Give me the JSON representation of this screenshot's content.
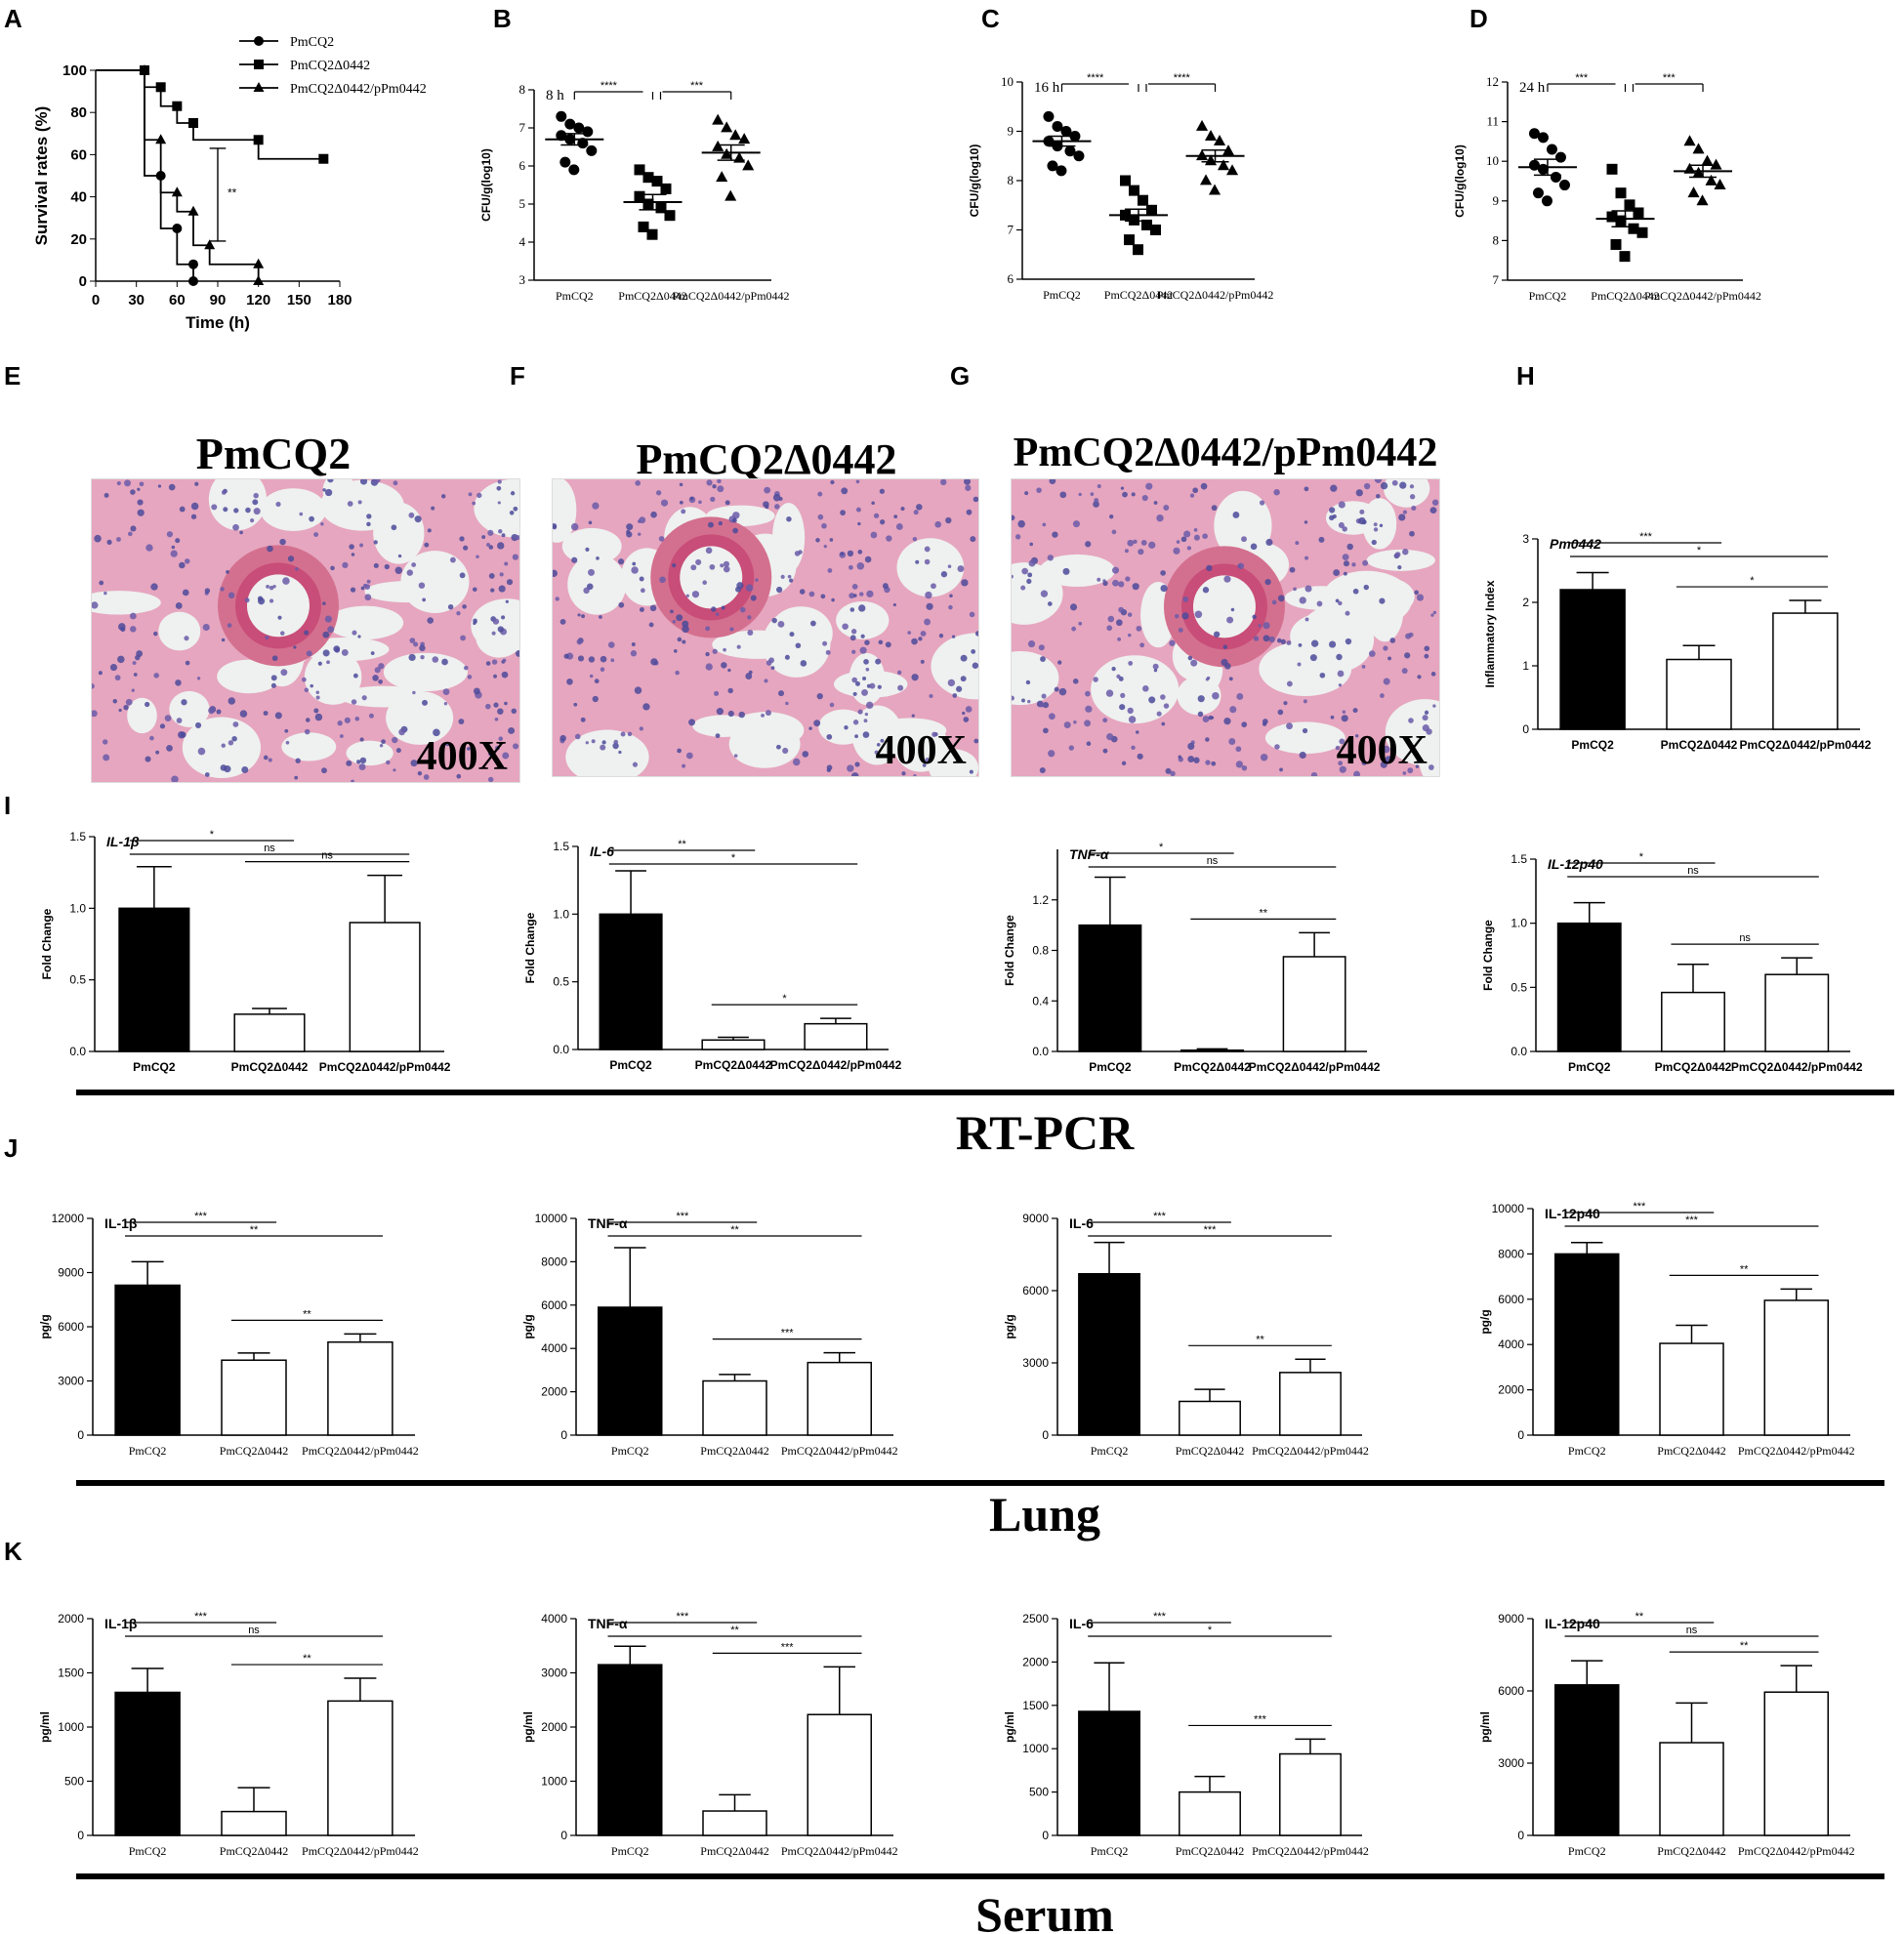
{
  "panel_letters": [
    "A",
    "B",
    "C",
    "D",
    "E",
    "F",
    "G",
    "H",
    "I",
    "J",
    "K"
  ],
  "section_titles": [
    "RT-PCR",
    "Lung",
    "Serum"
  ],
  "histology": [
    {
      "title": "PmCQ2",
      "mag": "400X"
    },
    {
      "title": "PmCQ2Δ0442",
      "mag": "400X"
    },
    {
      "title": "PmCQ2Δ0442/pPm0442",
      "mag": "400X"
    }
  ],
  "chart_data": [
    {
      "panel": "A",
      "type": "line",
      "xlabel": "Time (h)",
      "ylabel": "Survival rates (%)",
      "xlim": [
        0,
        180
      ],
      "ylim": [
        0,
        100
      ],
      "xticks": [
        0,
        30,
        60,
        90,
        120,
        150,
        180
      ],
      "yticks": [
        0,
        20,
        40,
        60,
        80,
        100
      ],
      "legend_position": "top-right",
      "series": [
        {
          "name": "PmCQ2",
          "marker": "circle",
          "x": [
            0,
            36,
            36,
            48,
            48,
            60,
            60,
            72,
            72
          ],
          "y": [
            100,
            100,
            50,
            50,
            25,
            25,
            8,
            8,
            0
          ]
        },
        {
          "name": "PmCQ2Δ0442",
          "marker": "square",
          "x": [
            0,
            36,
            36,
            48,
            48,
            60,
            60,
            72,
            72,
            120,
            120,
            168
          ],
          "y": [
            100,
            100,
            92,
            92,
            83,
            83,
            75,
            75,
            67,
            67,
            58,
            58
          ]
        },
        {
          "name": "PmCQ2Δ0442/pPm0442",
          "marker": "triangle",
          "x": [
            0,
            36,
            36,
            48,
            48,
            60,
            60,
            72,
            72,
            84,
            84,
            120,
            120
          ],
          "y": [
            100,
            100,
            67,
            67,
            42,
            42,
            33,
            33,
            17,
            17,
            8,
            8,
            0
          ]
        }
      ],
      "annotation": "**"
    },
    {
      "panel": "B",
      "type": "scatter",
      "inner_label": "8 h",
      "ylabel": "CFU/g(log10)",
      "ylim": [
        3,
        8
      ],
      "yticks": [
        3,
        4,
        5,
        6,
        7,
        8
      ],
      "categories": [
        "PmCQ2",
        "PmCQ2Δ0442",
        "PmCQ2Δ0442/pPm0442"
      ],
      "markers": [
        "circle",
        "square",
        "triangle"
      ],
      "points": [
        [
          7.3,
          7.1,
          7.0,
          6.9,
          6.8,
          6.7,
          6.6,
          6.4,
          6.1,
          5.9
        ],
        [
          5.9,
          5.7,
          5.6,
          5.4,
          5.2,
          5.0,
          4.9,
          4.7,
          4.4,
          4.2
        ],
        [
          7.2,
          7.0,
          6.8,
          6.7,
          6.5,
          6.3,
          6.2,
          6.0,
          5.7,
          5.2
        ]
      ],
      "means": [
        6.7,
        5.05,
        6.35
      ],
      "sem": [
        0.15,
        0.2,
        0.2
      ],
      "sig": [
        {
          "from": 0,
          "to": 1,
          "label": "****"
        },
        {
          "from": 1,
          "to": 2,
          "label": "***"
        }
      ]
    },
    {
      "panel": "C",
      "type": "scatter",
      "inner_label": "16 h",
      "ylabel": "CFU/g(log10)",
      "ylim": [
        6,
        10
      ],
      "yticks": [
        6,
        7,
        8,
        9,
        10
      ],
      "categories": [
        "PmCQ2",
        "PmCQ2Δ0442",
        "PmCQ2Δ0442/pPm0442"
      ],
      "markers": [
        "circle",
        "square",
        "triangle"
      ],
      "points": [
        [
          9.3,
          9.1,
          9.0,
          8.9,
          8.8,
          8.7,
          8.6,
          8.5,
          8.3,
          8.2
        ],
        [
          8.0,
          7.8,
          7.6,
          7.4,
          7.3,
          7.2,
          7.1,
          7.0,
          6.8,
          6.6
        ],
        [
          9.1,
          8.9,
          8.8,
          8.6,
          8.5,
          8.4,
          8.3,
          8.2,
          8.0,
          7.8
        ]
      ],
      "means": [
        8.8,
        7.3,
        8.5
      ],
      "sem": [
        0.1,
        0.12,
        0.12
      ],
      "sig": [
        {
          "from": 0,
          "to": 1,
          "label": "****"
        },
        {
          "from": 1,
          "to": 2,
          "label": "****"
        }
      ]
    },
    {
      "panel": "D",
      "type": "scatter",
      "inner_label": "24 h",
      "ylabel": "CFU/g(log10)",
      "ylim": [
        7,
        12
      ],
      "yticks": [
        7,
        8,
        9,
        10,
        11,
        12
      ],
      "categories": [
        "PmCQ2",
        "PmCQ2Δ0442",
        "PmCQ2Δ0442/pPm0442"
      ],
      "markers": [
        "circle",
        "square",
        "triangle"
      ],
      "points": [
        [
          10.7,
          10.6,
          10.3,
          10.1,
          9.9,
          9.8,
          9.6,
          9.4,
          9.2,
          9.0
        ],
        [
          9.8,
          9.2,
          8.9,
          8.7,
          8.6,
          8.5,
          8.3,
          8.2,
          7.9,
          7.6
        ],
        [
          10.5,
          10.3,
          10.0,
          9.9,
          9.8,
          9.7,
          9.5,
          9.4,
          9.2,
          9.0
        ]
      ],
      "means": [
        9.85,
        8.55,
        9.75
      ],
      "sem": [
        0.2,
        0.2,
        0.15
      ],
      "sig": [
        {
          "from": 0,
          "to": 1,
          "label": "***"
        },
        {
          "from": 1,
          "to": 2,
          "label": "***"
        }
      ]
    },
    {
      "panel": "H",
      "type": "bar",
      "inner_label": "Pm0442",
      "ylabel": "Inflammatory Index",
      "ylim": [
        0,
        3
      ],
      "yticks": [
        0,
        1,
        2,
        3
      ],
      "categories": [
        "PmCQ2",
        "PmCQ2Δ0442",
        "PmCQ2Δ0442/pPm0442"
      ],
      "values": [
        2.2,
        1.1,
        1.83
      ],
      "err": [
        0.27,
        0.22,
        0.2
      ],
      "sig": [
        {
          "from": 0,
          "to": 1,
          "label": "***"
        },
        {
          "from": 0,
          "to": 2,
          "label": "*"
        },
        {
          "from": 1,
          "to": 2,
          "label": "*"
        }
      ]
    },
    {
      "panel": "I1",
      "type": "bar",
      "inner_label": "IL-1β",
      "ylabel": "Fold Change",
      "ylim": [
        0,
        1.5
      ],
      "yticks": [
        0.0,
        0.5,
        1.0,
        1.5
      ],
      "categories": [
        "PmCQ2",
        "PmCQ2Δ0442",
        "PmCQ2Δ0442/pPm0442"
      ],
      "values": [
        1.0,
        0.26,
        0.9
      ],
      "err": [
        0.29,
        0.04,
        0.33
      ],
      "sig": [
        {
          "from": 0,
          "to": 1,
          "label": "*"
        },
        {
          "from": 0,
          "to": 2,
          "label": "ns"
        },
        {
          "from": 1,
          "to": 2,
          "label": "ns"
        }
      ]
    },
    {
      "panel": "I2",
      "type": "bar",
      "inner_label": "IL-6",
      "ylabel": "Fold Change",
      "ylim": [
        0,
        1.5
      ],
      "yticks": [
        0.0,
        0.5,
        1.0,
        1.5
      ],
      "categories": [
        "PmCQ2",
        "PmCQ2Δ0442",
        "PmCQ2Δ0442/pPm0442"
      ],
      "values": [
        1.0,
        0.07,
        0.19
      ],
      "err": [
        0.32,
        0.02,
        0.04
      ],
      "sig": [
        {
          "from": 0,
          "to": 1,
          "label": "**"
        },
        {
          "from": 0,
          "to": 2,
          "label": "*"
        },
        {
          "from": 1,
          "to": 2,
          "label": "*"
        }
      ]
    },
    {
      "panel": "I3",
      "type": "bar",
      "inner_label": "TNF-α",
      "ylabel": "Fold Change",
      "ylim": [
        0,
        1.6
      ],
      "yticks": [
        0.0,
        0.4,
        0.8,
        1.2
      ],
      "categories": [
        "PmCQ2",
        "PmCQ2Δ0442",
        "PmCQ2Δ0442/pPm0442"
      ],
      "values": [
        1.0,
        0.01,
        0.75
      ],
      "err": [
        0.38,
        0.01,
        0.19
      ],
      "sig": [
        {
          "from": 0,
          "to": 1,
          "label": "*"
        },
        {
          "from": 0,
          "to": 2,
          "label": "ns"
        },
        {
          "from": 1,
          "to": 2,
          "label": "**"
        }
      ]
    },
    {
      "panel": "I4",
      "type": "bar",
      "inner_label": "IL-12p40",
      "ylabel": "Fold Change",
      "ylim": [
        0,
        1.5
      ],
      "yticks": [
        0.0,
        0.5,
        1.0,
        1.5
      ],
      "categories": [
        "PmCQ2",
        "PmCQ2Δ0442",
        "PmCQ2Δ0442/pPm0442"
      ],
      "values": [
        1.0,
        0.46,
        0.6
      ],
      "err": [
        0.16,
        0.22,
        0.13
      ],
      "sig": [
        {
          "from": 0,
          "to": 1,
          "label": "*"
        },
        {
          "from": 0,
          "to": 2,
          "label": "ns"
        },
        {
          "from": 1,
          "to": 2,
          "label": "ns"
        }
      ]
    },
    {
      "panel": "J1",
      "type": "bar",
      "inner_label": "IL-1β",
      "ylabel": "pg/g",
      "ylim": [
        0,
        12000
      ],
      "yticks": [
        0,
        3000,
        6000,
        9000,
        12000
      ],
      "categories": [
        "PmCQ2",
        "PmCQ2Δ0442",
        "PmCQ2Δ0442/pPm0442"
      ],
      "values": [
        8300,
        4150,
        5150
      ],
      "err": [
        1300,
        400,
        450
      ],
      "sig": [
        {
          "from": 0,
          "to": 1,
          "label": "***"
        },
        {
          "from": 0,
          "to": 2,
          "label": "**"
        },
        {
          "from": 1,
          "to": 2,
          "label": "**"
        }
      ]
    },
    {
      "panel": "J2",
      "type": "bar",
      "inner_label": "TNF-α",
      "ylabel": "pg/g",
      "ylim": [
        0,
        10000
      ],
      "yticks": [
        0,
        2000,
        4000,
        6000,
        8000,
        10000
      ],
      "categories": [
        "PmCQ2",
        "PmCQ2Δ0442",
        "PmCQ2Δ0442/pPm0442"
      ],
      "values": [
        5900,
        2500,
        3350
      ],
      "err": [
        2750,
        300,
        450
      ],
      "sig": [
        {
          "from": 0,
          "to": 1,
          "label": "***"
        },
        {
          "from": 0,
          "to": 2,
          "label": "**"
        },
        {
          "from": 1,
          "to": 2,
          "label": "***"
        }
      ]
    },
    {
      "panel": "J3",
      "type": "bar",
      "inner_label": "IL-6",
      "ylabel": "pg/g",
      "ylim": [
        0,
        9000
      ],
      "yticks": [
        0,
        3000,
        6000,
        9000
      ],
      "categories": [
        "PmCQ2",
        "PmCQ2Δ0442",
        "PmCQ2Δ0442/pPm0442"
      ],
      "values": [
        6700,
        1400,
        2600
      ],
      "err": [
        1300,
        500,
        550
      ],
      "sig": [
        {
          "from": 0,
          "to": 1,
          "label": "***"
        },
        {
          "from": 0,
          "to": 2,
          "label": "***"
        },
        {
          "from": 1,
          "to": 2,
          "label": "**"
        }
      ]
    },
    {
      "panel": "J4",
      "type": "bar",
      "inner_label": "IL-12p40",
      "ylabel": "pg/g",
      "ylim": [
        0,
        10000
      ],
      "yticks": [
        0,
        2000,
        4000,
        6000,
        8000,
        10000
      ],
      "categories": [
        "PmCQ2",
        "PmCQ2Δ0442",
        "PmCQ2Δ0442/pPm0442"
      ],
      "values": [
        8000,
        4050,
        5950
      ],
      "err": [
        500,
        800,
        500
      ],
      "sig": [
        {
          "from": 0,
          "to": 1,
          "label": "***"
        },
        {
          "from": 0,
          "to": 2,
          "label": "***"
        },
        {
          "from": 1,
          "to": 2,
          "label": "**"
        }
      ]
    },
    {
      "panel": "K1",
      "type": "bar",
      "inner_label": "IL-1β",
      "ylabel": "pg/ml",
      "ylim": [
        0,
        2000
      ],
      "yticks": [
        0,
        500,
        1000,
        1500,
        2000
      ],
      "categories": [
        "PmCQ2",
        "PmCQ2Δ0442",
        "PmCQ2Δ0442/pPm0442"
      ],
      "values": [
        1320,
        220,
        1240
      ],
      "err": [
        220,
        220,
        210
      ],
      "sig": [
        {
          "from": 0,
          "to": 1,
          "label": "***"
        },
        {
          "from": 0,
          "to": 2,
          "label": "ns"
        },
        {
          "from": 1,
          "to": 2,
          "label": "**"
        }
      ]
    },
    {
      "panel": "K2",
      "type": "bar",
      "inner_label": "TNF-α",
      "ylabel": "pg/ml",
      "ylim": [
        0,
        4000
      ],
      "yticks": [
        0,
        1000,
        2000,
        3000,
        4000
      ],
      "categories": [
        "PmCQ2",
        "PmCQ2Δ0442",
        "PmCQ2Δ0442/pPm0442"
      ],
      "values": [
        3150,
        450,
        2230
      ],
      "err": [
        340,
        300,
        880
      ],
      "sig": [
        {
          "from": 0,
          "to": 1,
          "label": "***"
        },
        {
          "from": 0,
          "to": 2,
          "label": "**"
        },
        {
          "from": 1,
          "to": 2,
          "label": "***"
        }
      ]
    },
    {
      "panel": "K3",
      "type": "bar",
      "inner_label": "IL-6",
      "ylabel": "pg/ml",
      "ylim": [
        0,
        2500
      ],
      "yticks": [
        0,
        500,
        1000,
        1500,
        2000,
        2500
      ],
      "categories": [
        "PmCQ2",
        "PmCQ2Δ0442",
        "PmCQ2Δ0442/pPm0442"
      ],
      "values": [
        1430,
        500,
        940
      ],
      "err": [
        560,
        180,
        170
      ],
      "sig": [
        {
          "from": 0,
          "to": 1,
          "label": "***"
        },
        {
          "from": 0,
          "to": 2,
          "label": "*"
        },
        {
          "from": 1,
          "to": 2,
          "label": "***"
        }
      ]
    },
    {
      "panel": "K4",
      "type": "bar",
      "inner_label": "IL-12p40",
      "ylabel": "pg/ml",
      "ylim": [
        0,
        9000
      ],
      "yticks": [
        0,
        3000,
        6000,
        9000
      ],
      "categories": [
        "PmCQ2",
        "PmCQ2Δ0442",
        "PmCQ2Δ0442/pPm0442"
      ],
      "values": [
        6250,
        3850,
        5950
      ],
      "err": [
        1000,
        1650,
        1100
      ],
      "sig": [
        {
          "from": 0,
          "to": 1,
          "label": "**"
        },
        {
          "from": 0,
          "to": 2,
          "label": "ns"
        },
        {
          "from": 1,
          "to": 2,
          "label": "**"
        }
      ]
    }
  ]
}
